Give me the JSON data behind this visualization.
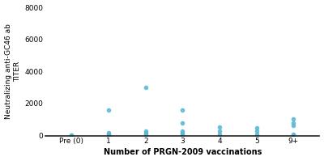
{
  "categories": [
    "Pre (0)",
    "1",
    "2",
    "3",
    "4",
    "5",
    "9+"
  ],
  "x_positions": [
    0,
    1,
    2,
    3,
    4,
    5,
    6
  ],
  "data_points": {
    "0": [
      50,
      30
    ],
    "1": [
      1600,
      200,
      100,
      50
    ],
    "2": [
      3000,
      300,
      200,
      100
    ],
    "3": [
      1600,
      800,
      300,
      200,
      100
    ],
    "4": [
      550,
      300,
      100
    ],
    "5": [
      500,
      300,
      100
    ],
    "6": [
      1050,
      800,
      650,
      100,
      50
    ]
  },
  "dot_color": "#5BB8D4",
  "ylim": [
    0,
    8000
  ],
  "yticks": [
    0,
    2000,
    4000,
    6000,
    8000
  ],
  "ylabel_line1": "Neutralizing anti-GC46 ab",
  "ylabel_line2": "TITER",
  "xlabel": "Number of PRGN-2009 vaccinations",
  "bg_color": "#ffffff",
  "marker_size": 4,
  "marker_alpha": 0.9,
  "tick_fontsize": 6.5,
  "xlabel_fontsize": 7,
  "ylabel_fontsize": 6.5
}
